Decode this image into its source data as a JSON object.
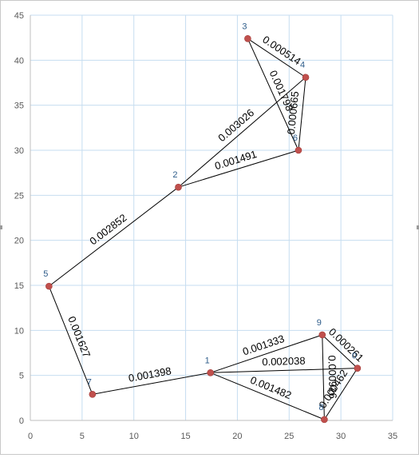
{
  "chart_data": {
    "type": "scatter",
    "title": "",
    "xlabel": "",
    "ylabel": "",
    "xlim": [
      0,
      35
    ],
    "ylim": [
      0,
      45
    ],
    "xticks": [
      0,
      5,
      10,
      15,
      20,
      25,
      30,
      35
    ],
    "yticks": [
      0,
      5,
      10,
      15,
      20,
      25,
      30,
      35,
      40,
      45
    ],
    "grid": true,
    "marker_color": "#c0504d",
    "line_color": "#000000",
    "node_label_color": "#2e5c8a",
    "grid_color": "#c6ddf0",
    "nodes": [
      {
        "id": "0",
        "x": 31.6,
        "y": 5.8
      },
      {
        "id": "1",
        "x": 17.4,
        "y": 5.3
      },
      {
        "id": "2",
        "x": 14.3,
        "y": 25.9
      },
      {
        "id": "3",
        "x": 21.0,
        "y": 42.4
      },
      {
        "id": "4",
        "x": 26.6,
        "y": 38.1
      },
      {
        "id": "5",
        "x": 1.8,
        "y": 14.9
      },
      {
        "id": "6",
        "x": 25.9,
        "y": 30.0
      },
      {
        "id": "7",
        "x": 6.0,
        "y": 2.9
      },
      {
        "id": "8",
        "x": 28.4,
        "y": 0.1
      },
      {
        "id": "9",
        "x": 28.2,
        "y": 9.5
      }
    ],
    "edges": [
      {
        "from": "3",
        "to": "4",
        "label": "0.000514"
      },
      {
        "from": "3",
        "to": "6",
        "label": "0.001798"
      },
      {
        "from": "4",
        "to": "6",
        "label": "0.000665"
      },
      {
        "from": "2",
        "to": "4",
        "label": "0.003026"
      },
      {
        "from": "2",
        "to": "6",
        "label": "0.001491"
      },
      {
        "from": "5",
        "to": "2",
        "label": "0.002852"
      },
      {
        "from": "5",
        "to": "7",
        "label": "0.001627"
      },
      {
        "from": "7",
        "to": "1",
        "label": "0.001398"
      },
      {
        "from": "1",
        "to": "9",
        "label": "0.001333"
      },
      {
        "from": "1",
        "to": "0",
        "label": "0.002038"
      },
      {
        "from": "1",
        "to": "8",
        "label": "0.001482"
      },
      {
        "from": "9",
        "to": "0",
        "label": "0.000261"
      },
      {
        "from": "9",
        "to": "8",
        "label": "0.000926"
      },
      {
        "from": "8",
        "to": "0",
        "label": "0.000462"
      }
    ]
  }
}
